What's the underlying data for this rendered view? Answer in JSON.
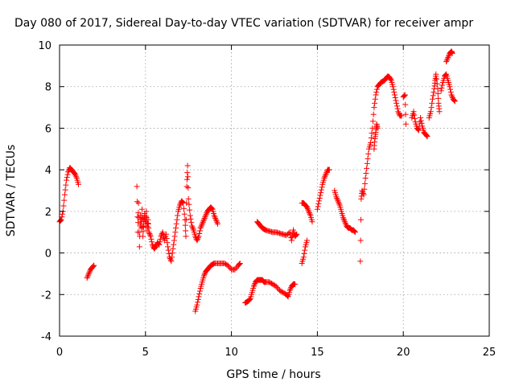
{
  "chart_data": {
    "type": "scatter",
    "title": "Day 080 of 2017, Sidereal Day-to-day VTEC variation (SDTVAR) for receiver ampr",
    "xlabel": "GPS time / hours",
    "ylabel": "SDTVAR / TECUs",
    "xlim": [
      0,
      25
    ],
    "ylim": [
      -4,
      10
    ],
    "xticks": [
      0,
      5,
      10,
      15,
      20,
      25
    ],
    "yticks": [
      -4,
      -2,
      0,
      2,
      4,
      6,
      8,
      10
    ],
    "grid": true,
    "marker": "+",
    "color": "#ff0000",
    "series": [
      {
        "name": "SDTVAR",
        "segments": [
          [
            [
              0.0,
              1.5
            ],
            [
              0.1,
              1.6
            ],
            [
              0.2,
              2.0
            ],
            [
              0.3,
              2.8
            ],
            [
              0.4,
              3.5
            ],
            [
              0.5,
              3.9
            ],
            [
              0.6,
              4.1
            ],
            [
              0.7,
              4.0
            ],
            [
              0.8,
              3.9
            ],
            [
              0.9,
              3.8
            ],
            [
              1.0,
              3.6
            ],
            [
              1.1,
              3.3
            ]
          ],
          [
            [
              1.6,
              -1.2
            ],
            [
              1.7,
              -1.0
            ],
            [
              1.8,
              -0.8
            ],
            [
              1.9,
              -0.7
            ],
            [
              2.0,
              -0.6
            ]
          ],
          [
            [
              4.5,
              3.2
            ],
            [
              4.55,
              1.0
            ],
            [
              4.6,
              2.4
            ],
            [
              4.65,
              0.3
            ],
            [
              4.7,
              1.8
            ],
            [
              4.75,
              1.2
            ],
            [
              4.8,
              2.1
            ],
            [
              4.85,
              0.8
            ],
            [
              4.9,
              1.5
            ],
            [
              4.95,
              1.9
            ],
            [
              5.0,
              1.3
            ],
            [
              5.05,
              2.0
            ],
            [
              5.1,
              1.1
            ],
            [
              5.15,
              1.6
            ],
            [
              5.2,
              1.0
            ],
            [
              5.3,
              0.8
            ],
            [
              5.4,
              0.4
            ],
            [
              5.5,
              0.2
            ],
            [
              5.6,
              0.3
            ],
            [
              5.7,
              0.5
            ],
            [
              5.8,
              0.4
            ],
            [
              5.9,
              0.8
            ],
            [
              6.0,
              1.0
            ],
            [
              6.1,
              0.6
            ],
            [
              6.2,
              0.9
            ],
            [
              6.3,
              0.3
            ],
            [
              6.4,
              -0.2
            ],
            [
              6.5,
              -0.4
            ],
            [
              6.6,
              0.2
            ],
            [
              6.7,
              0.8
            ],
            [
              6.8,
              1.4
            ],
            [
              6.9,
              2.0
            ],
            [
              7.0,
              2.3
            ],
            [
              7.1,
              2.5
            ],
            [
              7.2,
              2.4
            ],
            [
              7.3,
              1.6
            ],
            [
              7.35,
              0.8
            ],
            [
              7.4,
              3.2
            ],
            [
              7.45,
              4.2
            ],
            [
              7.5,
              2.6
            ],
            [
              7.6,
              1.8
            ],
            [
              7.7,
              1.3
            ],
            [
              7.8,
              1.1
            ],
            [
              7.9,
              0.8
            ],
            [
              8.0,
              0.6
            ],
            [
              8.1,
              0.8
            ],
            [
              8.2,
              1.2
            ],
            [
              8.3,
              1.4
            ],
            [
              8.4,
              1.6
            ],
            [
              8.5,
              1.8
            ],
            [
              8.6,
              2.0
            ],
            [
              8.7,
              2.1
            ],
            [
              8.8,
              2.2
            ],
            [
              8.9,
              2.1
            ],
            [
              9.0,
              1.8
            ],
            [
              9.1,
              1.6
            ],
            [
              9.2,
              1.4
            ]
          ],
          [
            [
              7.9,
              -2.8
            ],
            [
              8.0,
              -2.5
            ],
            [
              8.1,
              -2.1
            ],
            [
              8.2,
              -1.7
            ],
            [
              8.3,
              -1.4
            ],
            [
              8.4,
              -1.1
            ],
            [
              8.5,
              -0.9
            ],
            [
              8.6,
              -0.8
            ],
            [
              8.7,
              -0.7
            ],
            [
              8.8,
              -0.6
            ],
            [
              8.9,
              -0.55
            ],
            [
              9.0,
              -0.5
            ],
            [
              9.2,
              -0.5
            ],
            [
              9.4,
              -0.5
            ],
            [
              9.6,
              -0.5
            ],
            [
              9.8,
              -0.6
            ],
            [
              10.0,
              -0.8
            ],
            [
              10.2,
              -0.8
            ],
            [
              10.4,
              -0.6
            ],
            [
              10.5,
              -0.5
            ]
          ],
          [
            [
              10.8,
              -2.4
            ],
            [
              10.9,
              -2.35
            ],
            [
              11.0,
              -2.3
            ],
            [
              11.1,
              -2.2
            ],
            [
              11.2,
              -1.9
            ],
            [
              11.3,
              -1.6
            ],
            [
              11.4,
              -1.4
            ],
            [
              11.5,
              -1.3
            ],
            [
              11.6,
              -1.3
            ],
            [
              11.7,
              -1.3
            ],
            [
              11.8,
              -1.3
            ],
            [
              11.9,
              -1.4
            ],
            [
              12.0,
              -1.4
            ],
            [
              12.2,
              -1.4
            ],
            [
              12.4,
              -1.5
            ],
            [
              12.6,
              -1.6
            ],
            [
              12.8,
              -1.8
            ],
            [
              13.0,
              -1.9
            ],
            [
              13.2,
              -2.0
            ],
            [
              13.3,
              -2.1
            ],
            [
              13.4,
              -1.8
            ],
            [
              13.5,
              -1.6
            ],
            [
              13.6,
              -1.5
            ],
            [
              13.7,
              -1.5
            ]
          ],
          [
            [
              11.5,
              1.5
            ],
            [
              11.6,
              1.4
            ],
            [
              11.7,
              1.3
            ],
            [
              11.8,
              1.2
            ],
            [
              11.9,
              1.15
            ],
            [
              12.0,
              1.1
            ],
            [
              12.2,
              1.05
            ],
            [
              12.4,
              1.0
            ],
            [
              12.6,
              1.0
            ],
            [
              12.8,
              0.95
            ],
            [
              13.0,
              0.9
            ],
            [
              13.2,
              0.85
            ],
            [
              13.4,
              1.0
            ],
            [
              13.5,
              0.6
            ],
            [
              13.6,
              1.1
            ],
            [
              13.7,
              0.8
            ],
            [
              13.8,
              0.9
            ]
          ],
          [
            [
              14.1,
              -0.5
            ],
            [
              14.2,
              -0.2
            ],
            [
              14.3,
              0.3
            ],
            [
              14.4,
              0.6
            ]
          ],
          [
            [
              14.1,
              2.4
            ],
            [
              14.2,
              2.4
            ],
            [
              14.3,
              2.3
            ],
            [
              14.4,
              2.2
            ],
            [
              14.5,
              2.0
            ],
            [
              14.6,
              1.8
            ],
            [
              14.7,
              1.5
            ]
          ],
          [
            [
              15.0,
              2.1
            ],
            [
              15.1,
              2.5
            ],
            [
              15.2,
              2.9
            ],
            [
              15.3,
              3.3
            ],
            [
              15.4,
              3.6
            ],
            [
              15.5,
              3.8
            ],
            [
              15.6,
              4.0
            ],
            [
              15.7,
              4.0
            ]
          ],
          [
            [
              16.0,
              3.0
            ],
            [
              16.1,
              2.7
            ],
            [
              16.2,
              2.5
            ],
            [
              16.3,
              2.3
            ],
            [
              16.4,
              2.0
            ],
            [
              16.5,
              1.7
            ],
            [
              16.6,
              1.5
            ],
            [
              16.7,
              1.3
            ],
            [
              16.8,
              1.2
            ],
            [
              16.9,
              1.2
            ],
            [
              17.0,
              1.1
            ],
            [
              17.1,
              1.1
            ],
            [
              17.2,
              1.0
            ]
          ],
          [
            [
              17.5,
              -0.4
            ],
            [
              17.55,
              2.6
            ],
            [
              17.6,
              3.0
            ],
            [
              17.7,
              2.8
            ],
            [
              17.8,
              3.6
            ],
            [
              17.9,
              4.3
            ],
            [
              18.0,
              5.0
            ],
            [
              18.1,
              5.3
            ],
            [
              18.2,
              6.0
            ],
            [
              18.3,
              7.0
            ],
            [
              18.4,
              7.6
            ],
            [
              18.5,
              8.0
            ],
            [
              18.6,
              8.1
            ],
            [
              18.7,
              8.2
            ],
            [
              18.8,
              8.25
            ],
            [
              18.9,
              8.3
            ],
            [
              19.0,
              8.4
            ],
            [
              19.1,
              8.5
            ],
            [
              19.2,
              8.45
            ],
            [
              19.3,
              8.3
            ],
            [
              19.4,
              8.0
            ],
            [
              19.5,
              7.6
            ],
            [
              19.6,
              7.2
            ],
            [
              19.7,
              6.8
            ],
            [
              19.8,
              6.6
            ],
            [
              19.9,
              6.6
            ]
          ],
          [
            [
              18.3,
              5.0
            ],
            [
              18.35,
              5.5
            ],
            [
              18.4,
              5.8
            ],
            [
              18.45,
              6.2
            ],
            [
              18.5,
              6.0
            ]
          ],
          [
            [
              20.0,
              7.5
            ],
            [
              20.1,
              7.6
            ],
            [
              20.15,
              6.2
            ]
          ],
          [
            [
              20.5,
              6.5
            ],
            [
              20.6,
              6.8
            ],
            [
              20.7,
              6.3
            ],
            [
              20.8,
              6.0
            ],
            [
              20.9,
              5.9
            ],
            [
              21.0,
              6.5
            ],
            [
              21.1,
              6.1
            ],
            [
              21.2,
              5.8
            ],
            [
              21.3,
              5.7
            ],
            [
              21.4,
              5.6
            ]
          ],
          [
            [
              21.5,
              6.5
            ],
            [
              21.6,
              6.8
            ],
            [
              21.7,
              7.4
            ],
            [
              21.8,
              7.9
            ],
            [
              21.85,
              8.3
            ],
            [
              21.9,
              8.6
            ],
            [
              22.0,
              7.9
            ],
            [
              22.05,
              7.2
            ],
            [
              22.1,
              6.8
            ]
          ],
          [
            [
              22.2,
              7.8
            ],
            [
              22.3,
              8.2
            ],
            [
              22.4,
              8.5
            ],
            [
              22.5,
              8.6
            ],
            [
              22.6,
              8.3
            ],
            [
              22.7,
              8.0
            ],
            [
              22.8,
              7.6
            ],
            [
              22.9,
              7.4
            ],
            [
              23.0,
              7.3
            ]
          ],
          [
            [
              22.5,
              9.2
            ],
            [
              22.6,
              9.4
            ],
            [
              22.7,
              9.6
            ],
            [
              22.8,
              9.7
            ],
            [
              22.85,
              9.6
            ]
          ]
        ]
      }
    ]
  }
}
